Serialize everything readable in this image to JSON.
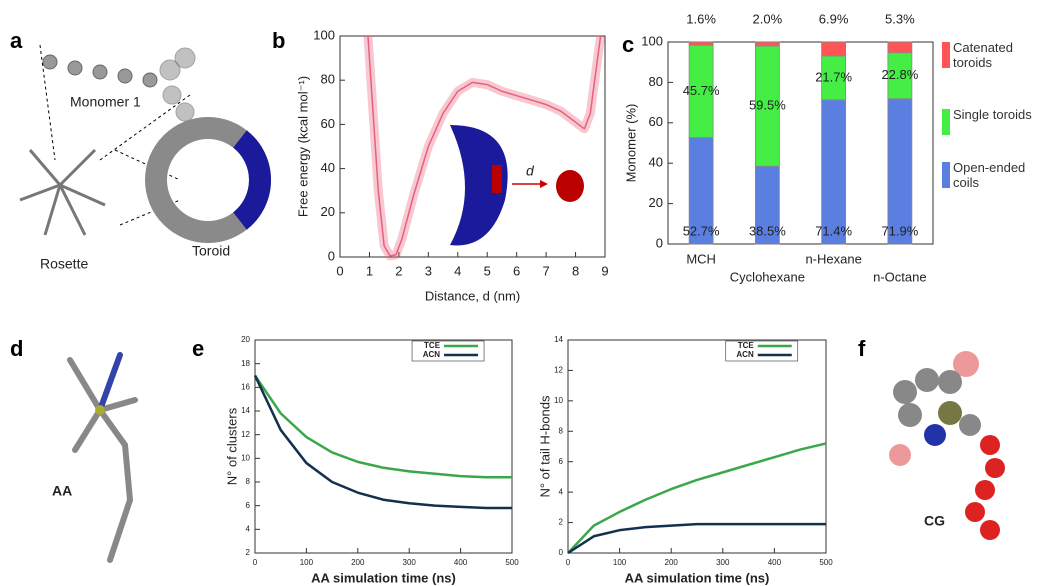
{
  "panel_letters": [
    "a",
    "b",
    "c",
    "d",
    "e",
    "f"
  ],
  "labels": {
    "monomer": "Monomer 1",
    "rosette": "Rosette",
    "toroid": "Toroid",
    "aa": "AA",
    "cg": "CG"
  },
  "chart_data": [
    {
      "type": "line",
      "xlabel": "Distance, d (nm)",
      "ylabel": "Free energy (kcal mol⁻¹)",
      "annotation": "d",
      "x": [
        0.95,
        1.1,
        1.3,
        1.5,
        1.7,
        1.9,
        2.1,
        2.5,
        3,
        3.5,
        4,
        4.5,
        5,
        5.5,
        6,
        6.5,
        7,
        7.5,
        8,
        8.3,
        8.5,
        8.7,
        8.85
      ],
      "values": [
        100,
        70,
        30,
        5,
        0.5,
        1,
        8,
        28,
        50,
        65,
        75,
        79,
        78,
        75,
        73,
        71,
        69,
        66,
        61,
        58,
        65,
        85,
        100
      ],
      "color": "#e8607a",
      "band": true,
      "xlim": [
        0,
        9
      ],
      "xticks": [
        0,
        1,
        2,
        3,
        4,
        5,
        6,
        7,
        8,
        9
      ],
      "ylim": [
        0,
        100
      ],
      "yticks": [
        0,
        20,
        40,
        60,
        80,
        100
      ]
    },
    {
      "type": "stacked_bar",
      "ylabel": "Monomer (%)",
      "categories": [
        "MCH",
        "Cyclohexane",
        "n-Hexane",
        "n-Octane"
      ],
      "series": [
        {
          "name": "Open-ended coils",
          "color": "#5b7fe0",
          "values": [
            52.7,
            38.5,
            71.4,
            71.9
          ],
          "value_labels": [
            "52.7%",
            "38.5%",
            "71.4%",
            "71.9%"
          ]
        },
        {
          "name": "Single toroids",
          "color": "#44ee44",
          "values": [
            45.7,
            59.5,
            21.7,
            22.8
          ],
          "value_labels": [
            "45.7%",
            "59.5%",
            "21.7%",
            "22.8%"
          ]
        },
        {
          "name": "Catenated toroids",
          "color": "#ff5555",
          "values": [
            1.6,
            2.0,
            6.9,
            5.3
          ],
          "value_labels": [
            "1.6%",
            "2.0%",
            "6.9%",
            "5.3%"
          ]
        }
      ],
      "ylim": [
        0,
        100
      ],
      "yticks": [
        0,
        20,
        40,
        60,
        80,
        100
      ]
    },
    {
      "type": "line",
      "xlabel": "AA simulation time (ns)",
      "ylabel": "N° of clusters",
      "x": [
        0,
        50,
        100,
        150,
        200,
        250,
        300,
        350,
        400,
        450,
        500
      ],
      "series": [
        {
          "name": "TCE",
          "color": "#3aa84a",
          "values": [
            17,
            13.8,
            11.8,
            10.5,
            9.7,
            9.2,
            8.9,
            8.7,
            8.5,
            8.4,
            8.4
          ]
        },
        {
          "name": "ACN",
          "color": "#13304f",
          "values": [
            17,
            12.4,
            9.6,
            8.0,
            7.1,
            6.5,
            6.2,
            6.0,
            5.9,
            5.8,
            5.8
          ]
        }
      ],
      "xlim": [
        0,
        500
      ],
      "xticks": [
        0,
        100,
        200,
        300,
        400,
        500
      ],
      "ylim": [
        2,
        20
      ],
      "yticks": [
        2,
        4,
        6,
        8,
        10,
        12,
        14,
        16,
        18,
        20
      ]
    },
    {
      "type": "line",
      "xlabel": "AA simulation time (ns)",
      "ylabel": "N° of tail H-bonds",
      "x": [
        0,
        50,
        100,
        150,
        200,
        250,
        300,
        350,
        400,
        450,
        500
      ],
      "series": [
        {
          "name": "TCE",
          "color": "#3aa84a",
          "values": [
            0,
            1.8,
            2.7,
            3.5,
            4.2,
            4.8,
            5.3,
            5.8,
            6.3,
            6.8,
            7.2
          ]
        },
        {
          "name": "ACN",
          "color": "#13304f",
          "values": [
            0,
            1.1,
            1.5,
            1.7,
            1.8,
            1.9,
            1.9,
            1.9,
            1.9,
            1.9,
            1.9
          ]
        }
      ],
      "xlim": [
        0,
        500
      ],
      "xticks": [
        0,
        100,
        200,
        300,
        400,
        500
      ],
      "ylim": [
        0,
        14
      ],
      "yticks": [
        0,
        2,
        4,
        6,
        8,
        10,
        12,
        14
      ]
    }
  ]
}
